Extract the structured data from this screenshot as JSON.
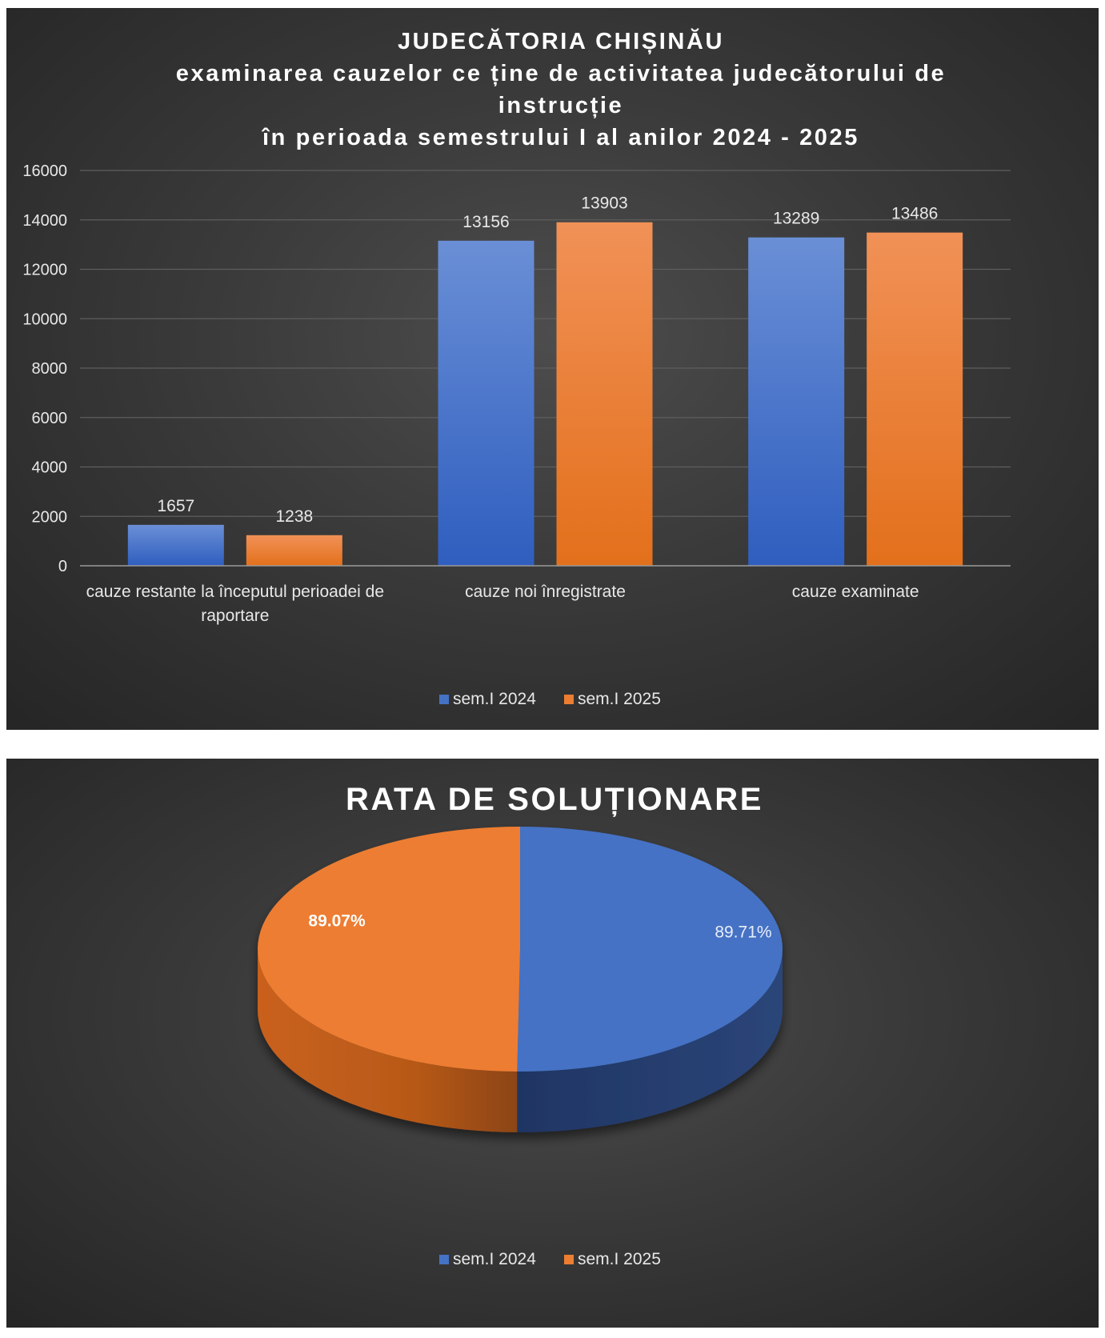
{
  "colors": {
    "sem_2024": "#4472c4",
    "sem_2025": "#ed7d31",
    "gridline": "#5e5e5e",
    "text": "#e8e8e8"
  },
  "chart_data": [
    {
      "type": "bar",
      "title_lines": [
        "JUDECĂTORIA CHIȘINĂU",
        "examinarea cauzelor ce ține de activitatea judecătorului de",
        "instrucție",
        "în perioada semestrului I al anilor 2024 - 2025"
      ],
      "categories": [
        [
          "cauze restante la începutul perioadei de",
          "raportare"
        ],
        [
          "cauze noi înregistrate"
        ],
        [
          "cauze examinate"
        ]
      ],
      "series": [
        {
          "name": "sem.I 2024",
          "values": [
            1657,
            13156,
            13289
          ],
          "labels": [
            "1657",
            "13156",
            "13289"
          ]
        },
        {
          "name": "sem.I 2025",
          "values": [
            1238,
            13903,
            13486
          ],
          "labels": [
            "1238",
            "13903",
            "13486"
          ]
        }
      ],
      "y_ticks": [
        "0",
        "2000",
        "4000",
        "6000",
        "8000",
        "10000",
        "12000",
        "14000",
        "16000"
      ],
      "ylim": [
        0,
        16000
      ],
      "grid": true,
      "legend": "bottom"
    },
    {
      "type": "pie",
      "title": "RATA DE SOLUȚIONARE",
      "slices": [
        {
          "name": "sem.I 2024",
          "value": 89.71,
          "label": "89.71%"
        },
        {
          "name": "sem.I 2025",
          "value": 89.07,
          "label": "89.07%"
        }
      ],
      "legend": "bottom",
      "style": "3d"
    }
  ]
}
